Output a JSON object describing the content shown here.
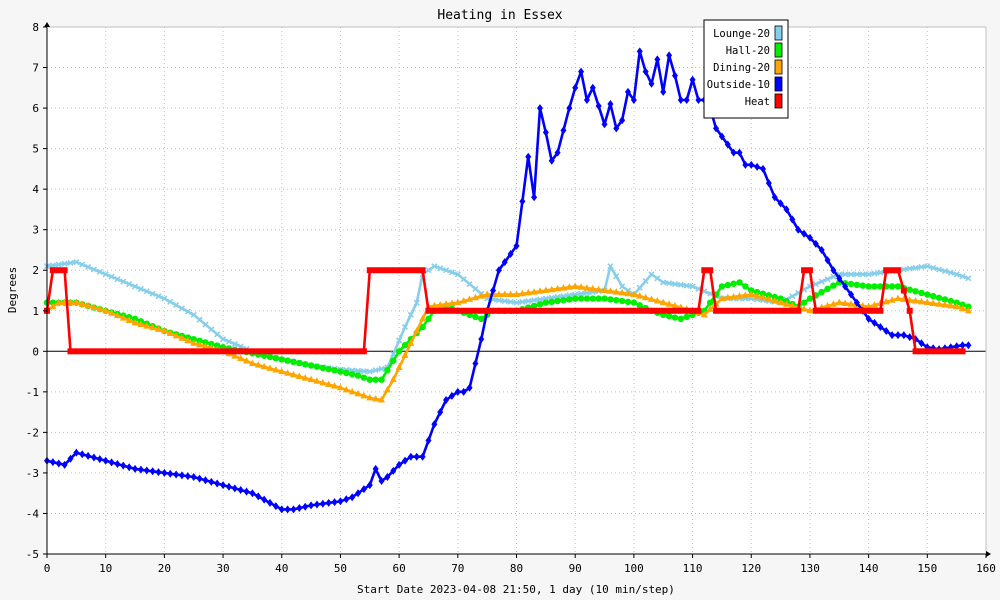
{
  "chart_data": {
    "type": "line",
    "title": "Heating in Essex",
    "xlabel": "Start Date 2023-04-08 21:50, 1 day (10 min/step)",
    "ylabel": "Degrees",
    "xlim": [
      0,
      160
    ],
    "ylim": [
      -5,
      8
    ],
    "xticks": [
      0,
      10,
      20,
      30,
      40,
      50,
      60,
      70,
      80,
      90,
      100,
      110,
      120,
      130,
      140,
      150,
      160
    ],
    "yticks": [
      -5,
      -4,
      -3,
      -2,
      -1,
      0,
      1,
      2,
      3,
      4,
      5,
      6,
      7,
      8
    ],
    "grid": true,
    "legend_position": "top-right",
    "series": [
      {
        "name": "Lounge-20",
        "color": "#87ceeb",
        "marker": "x",
        "x": [
          0,
          5,
          10,
          15,
          20,
          25,
          30,
          35,
          40,
          45,
          50,
          55,
          58,
          61,
          63,
          64,
          66,
          70,
          75,
          80,
          85,
          90,
          95,
          96,
          98,
          100,
          103,
          105,
          110,
          115,
          120,
          125,
          130,
          135,
          140,
          145,
          150,
          155,
          157
        ],
        "y": [
          2.1,
          2.2,
          1.9,
          1.6,
          1.3,
          0.9,
          0.3,
          0.0,
          -0.2,
          -0.35,
          -0.45,
          -0.5,
          -0.4,
          0.6,
          1.2,
          1.9,
          2.1,
          1.9,
          1.3,
          1.2,
          1.3,
          1.4,
          1.5,
          2.1,
          1.6,
          1.4,
          1.9,
          1.7,
          1.6,
          1.3,
          1.3,
          1.2,
          1.6,
          1.9,
          1.9,
          2.0,
          2.1,
          1.9,
          1.8
        ]
      },
      {
        "name": "Hall-20",
        "color": "#00ee00",
        "marker": "circle",
        "x": [
          0,
          5,
          10,
          15,
          20,
          25,
          30,
          35,
          40,
          45,
          50,
          53,
          55,
          57,
          60,
          62,
          64,
          66,
          68,
          70,
          72,
          74,
          76,
          80,
          85,
          90,
          95,
          100,
          103,
          105,
          108,
          110,
          112,
          115,
          118,
          120,
          125,
          128,
          130,
          135,
          140,
          145,
          150,
          155,
          157
        ],
        "y": [
          1.2,
          1.2,
          1.0,
          0.8,
          0.5,
          0.3,
          0.1,
          -0.05,
          -0.2,
          -0.35,
          -0.5,
          -0.6,
          -0.7,
          -0.7,
          0.0,
          0.3,
          0.6,
          1.0,
          1.1,
          1.0,
          0.9,
          0.8,
          1.0,
          1.0,
          1.2,
          1.3,
          1.3,
          1.2,
          1.0,
          0.9,
          0.8,
          0.9,
          1.0,
          1.6,
          1.7,
          1.5,
          1.3,
          1.1,
          1.3,
          1.7,
          1.6,
          1.6,
          1.4,
          1.2,
          1.1
        ]
      },
      {
        "name": "Dining-20",
        "color": "#ffa500",
        "marker": "triangle",
        "x": [
          0,
          2,
          5,
          10,
          15,
          20,
          25,
          30,
          35,
          40,
          45,
          50,
          53,
          55,
          57,
          59,
          61,
          63,
          65,
          70,
          75,
          80,
          85,
          90,
          95,
          100,
          105,
          110,
          112,
          115,
          120,
          125,
          130,
          135,
          140,
          145,
          150,
          155,
          157
        ],
        "y": [
          1.0,
          1.2,
          1.2,
          1.0,
          0.7,
          0.5,
          0.2,
          0.0,
          -0.3,
          -0.5,
          -0.7,
          -0.9,
          -1.05,
          -1.15,
          -1.2,
          -0.7,
          -0.1,
          0.5,
          1.1,
          1.2,
          1.4,
          1.4,
          1.5,
          1.6,
          1.5,
          1.4,
          1.2,
          1.0,
          0.9,
          1.3,
          1.4,
          1.2,
          1.0,
          1.2,
          1.1,
          1.3,
          1.2,
          1.1,
          1.0
        ]
      },
      {
        "name": "Outside-10",
        "color": "#0000ff",
        "marker": "diamond",
        "x": [
          0,
          3,
          5,
          10,
          15,
          20,
          25,
          30,
          35,
          40,
          42,
          45,
          50,
          52,
          55,
          56,
          57,
          58,
          60,
          62,
          64,
          65,
          66,
          68,
          70,
          71,
          72,
          74,
          75,
          77,
          80,
          81,
          82,
          83,
          84,
          85,
          86,
          87,
          89,
          90,
          91,
          92,
          93,
          95,
          96,
          97,
          98,
          99,
          100,
          101,
          102,
          103,
          104,
          105,
          106,
          107,
          108,
          109,
          110,
          111,
          112,
          113,
          114,
          115,
          117,
          118,
          119,
          120,
          122,
          124,
          126,
          128,
          130,
          132,
          134,
          136,
          138,
          140,
          142,
          144,
          146,
          148,
          150,
          152,
          154,
          156,
          157
        ],
        "y": [
          -2.7,
          -2.8,
          -2.5,
          -2.7,
          -2.9,
          -3.0,
          -3.1,
          -3.3,
          -3.5,
          -3.9,
          -3.9,
          -3.8,
          -3.7,
          -3.6,
          -3.3,
          -2.9,
          -3.2,
          -3.1,
          -2.8,
          -2.6,
          -2.6,
          -2.2,
          -1.8,
          -1.2,
          -1.0,
          -1.0,
          -0.9,
          0.3,
          1.0,
          2.0,
          2.6,
          3.7,
          4.8,
          3.8,
          6.0,
          5.4,
          4.7,
          4.9,
          6.0,
          6.5,
          6.9,
          6.2,
          6.5,
          5.6,
          6.1,
          5.5,
          5.7,
          6.4,
          6.2,
          7.4,
          6.9,
          6.6,
          7.2,
          6.4,
          7.3,
          6.8,
          6.2,
          6.2,
          6.7,
          6.2,
          6.2,
          6.0,
          5.5,
          5.3,
          4.9,
          4.9,
          4.6,
          4.6,
          4.5,
          3.8,
          3.5,
          3.0,
          2.8,
          2.5,
          2.0,
          1.6,
          1.2,
          0.8,
          0.6,
          0.4,
          0.4,
          0.3,
          0.1,
          0.05,
          0.1,
          0.15,
          0.15
        ]
      },
      {
        "name": "Heat",
        "color": "#ff0000",
        "marker": "square",
        "x": [
          0,
          1,
          2,
          3,
          4,
          5,
          54,
          55,
          64,
          65,
          111,
          112,
          113,
          114,
          128,
          129,
          130,
          131,
          142,
          143,
          145,
          147,
          148,
          156
        ],
        "y": [
          1,
          2,
          2,
          2,
          0,
          0,
          0,
          2,
          2,
          1,
          1,
          2,
          2,
          1,
          1,
          2,
          2,
          1,
          1,
          2,
          2,
          1,
          0,
          0
        ]
      }
    ]
  }
}
